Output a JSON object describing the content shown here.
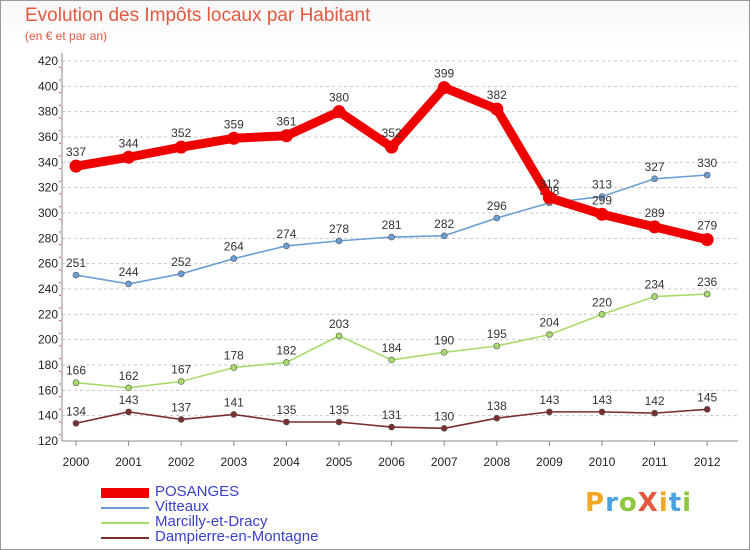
{
  "header": {
    "title": "Evolution des Impôts locaux par Habitant",
    "subtitle": "(en € et par an)"
  },
  "logo": {
    "text": "ProXiti",
    "letters": [
      {
        "ch": "P",
        "color": "#f5a623"
      },
      {
        "ch": "r",
        "color": "#4aa3df"
      },
      {
        "ch": "o",
        "color": "#8dc63f"
      },
      {
        "ch": "X",
        "color": "#e2593f"
      },
      {
        "ch": "i",
        "color": "#f5a623"
      },
      {
        "ch": "t",
        "color": "#4aa3df"
      },
      {
        "ch": "i",
        "color": "#8dc63f"
      }
    ]
  },
  "chart_data": {
    "type": "line",
    "title": "Evolution des Impôts locaux par Habitant",
    "subtitle": "(en € et par an)",
    "xlabel": "",
    "ylabel": "",
    "ylim": [
      120,
      420
    ],
    "ytick_step": 20,
    "grid": "horizontal dashed",
    "legend_position": "bottom-left",
    "x": [
      "2000",
      "2001",
      "2002",
      "2003",
      "2004",
      "2005",
      "2006",
      "2007",
      "2008",
      "2009",
      "2010",
      "2011",
      "2012"
    ],
    "series": [
      {
        "name": "POSANGES",
        "color": "#ee0000",
        "thick": true,
        "values": [
          337,
          344,
          352,
          359,
          361,
          380,
          352,
          399,
          382,
          312,
          299,
          289,
          279
        ]
      },
      {
        "name": "Vitteaux",
        "color": "#6b9fd3",
        "thick": false,
        "values": [
          251,
          244,
          252,
          264,
          274,
          278,
          281,
          282,
          296,
          308,
          313,
          327,
          330
        ]
      },
      {
        "name": "Marcilly-et-Dracy",
        "color": "#a6dc6a",
        "thick": false,
        "values": [
          166,
          162,
          167,
          178,
          182,
          203,
          184,
          190,
          195,
          204,
          220,
          234,
          236
        ]
      },
      {
        "name": "Dampierre-en-Montagne",
        "color": "#7b2e2e",
        "thick": false,
        "values": [
          134,
          143,
          137,
          141,
          135,
          135,
          131,
          130,
          138,
          143,
          143,
          142,
          145
        ]
      }
    ]
  }
}
